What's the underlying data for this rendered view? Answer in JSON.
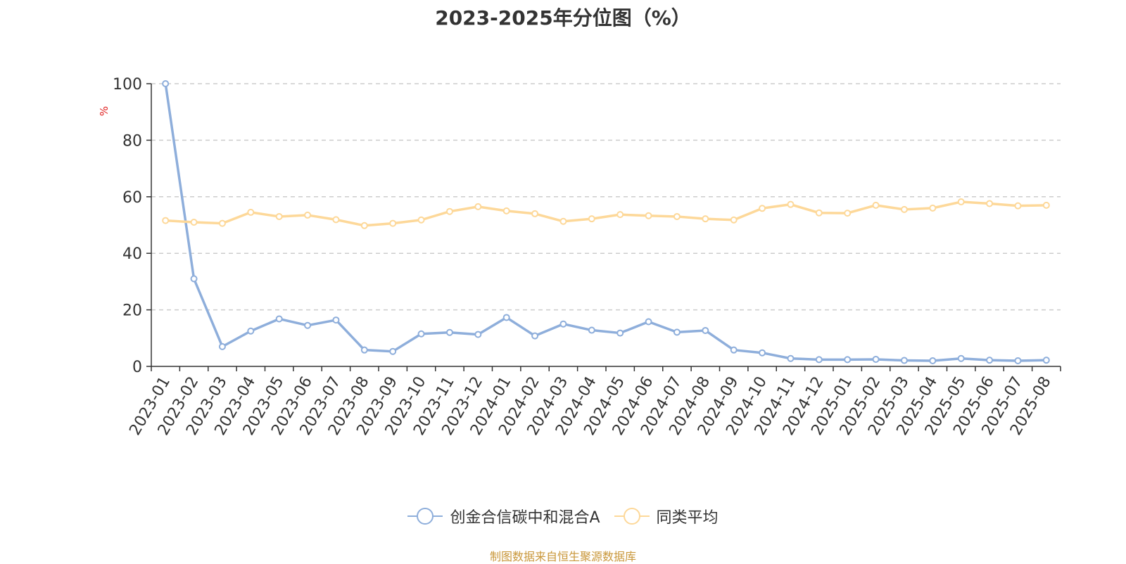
{
  "chart_data": {
    "type": "line",
    "title": "2023-2025年分位图（%）",
    "ylabel": "%",
    "xlabel": "",
    "ylim": [
      0,
      100
    ],
    "yticks": [
      0,
      20,
      40,
      60,
      80,
      100
    ],
    "grid": true,
    "legend_position": "bottom",
    "categories": [
      "2023-01",
      "2023-02",
      "2023-03",
      "2023-04",
      "2023-05",
      "2023-06",
      "2023-07",
      "2023-08",
      "2023-09",
      "2023-10",
      "2023-11",
      "2023-12",
      "2024-01",
      "2024-02",
      "2024-03",
      "2024-04",
      "2024-05",
      "2024-06",
      "2024-07",
      "2024-08",
      "2024-09",
      "2024-10",
      "2024-11",
      "2024-12",
      "2025-01",
      "2025-02",
      "2025-03",
      "2025-04",
      "2025-05",
      "2025-06",
      "2025-07",
      "2025-08"
    ],
    "series": [
      {
        "name": "创金合信碳中和混合A",
        "color": "#8eaedb",
        "values": [
          100,
          31,
          7,
          12.5,
          16.8,
          14.5,
          16.4,
          5.8,
          5.3,
          11.5,
          12,
          11.3,
          17.3,
          10.8,
          15,
          12.8,
          11.8,
          15.8,
          12.1,
          12.7,
          5.8,
          4.8,
          2.8,
          2.4,
          2.4,
          2.5,
          2.1,
          2,
          2.8,
          2.2,
          2,
          2.2
        ]
      },
      {
        "name": "同类平均",
        "color": "#fdd899",
        "values": [
          51.6,
          51,
          50.6,
          54.5,
          53,
          53.5,
          51.9,
          49.8,
          50.6,
          51.8,
          54.8,
          56.5,
          55,
          54,
          51.3,
          52.2,
          53.7,
          53.3,
          53,
          52.2,
          51.8,
          55.9,
          57.3,
          54.3,
          54.2,
          57,
          55.5,
          56,
          58.2,
          57.6,
          56.8,
          57
        ]
      }
    ]
  },
  "footer": {
    "source": "制图数据来自恒生聚源数据库"
  }
}
